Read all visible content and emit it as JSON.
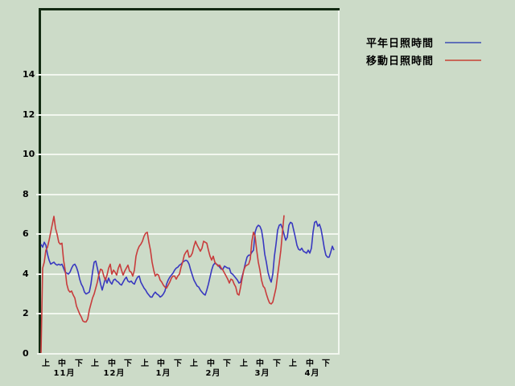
{
  "page": {
    "background_color": "#ccdbc8",
    "plot_border_dark": "#122a12",
    "plot_border_light": "#f2f7ef",
    "gridline_color": "#f2f7ef",
    "text_color": "#000000"
  },
  "legend": {
    "items": [
      {
        "label": "平年日照時間",
        "swatch_color": "#6070b8",
        "series": "normal"
      },
      {
        "label": "移動日照時間",
        "swatch_color": "#c86858",
        "series": "moving"
      }
    ]
  },
  "chart_data": {
    "type": "line",
    "title": "",
    "xlabel": "",
    "ylabel": "",
    "grid": true,
    "ylim": [
      0,
      17.3
    ],
    "y_ticks": [
      0,
      2,
      4,
      6,
      8,
      10,
      12,
      14
    ],
    "x_axis": {
      "period_labels": [
        "上",
        "中",
        "下"
      ],
      "months": [
        "１１月",
        "１２月",
        "１月",
        "２月",
        "３月",
        "４月"
      ],
      "months_plain": [
        "11月",
        "12月",
        "1月",
        "2月",
        "3月",
        "4月"
      ],
      "days_total": 183
    },
    "series": [
      {
        "name": "平年日照時間",
        "color": "#3838c0",
        "start_day": 1,
        "values": [
          5.5,
          5.35,
          5.6,
          5.45,
          5.0,
          4.7,
          4.5,
          4.55,
          4.6,
          4.5,
          4.45,
          4.5,
          4.45,
          4.5,
          4.3,
          4.1,
          4.05,
          4.0,
          4.1,
          4.3,
          4.45,
          4.5,
          4.35,
          4.1,
          3.75,
          3.5,
          3.35,
          3.1,
          3.0,
          3.05,
          3.1,
          3.5,
          4.1,
          4.6,
          4.65,
          4.3,
          3.9,
          3.5,
          3.2,
          3.5,
          3.8,
          3.55,
          3.8,
          3.6,
          3.5,
          3.7,
          3.75,
          3.65,
          3.6,
          3.5,
          3.45,
          3.6,
          3.75,
          3.85,
          3.65,
          3.6,
          3.65,
          3.55,
          3.5,
          3.7,
          3.85,
          3.9,
          3.6,
          3.45,
          3.3,
          3.2,
          3.05,
          2.95,
          2.85,
          2.85,
          3.0,
          3.1,
          3.0,
          2.95,
          2.85,
          2.9,
          3.0,
          3.15,
          3.5,
          3.7,
          3.85,
          3.95,
          4.05,
          4.2,
          4.3,
          4.35,
          4.45,
          4.5,
          4.6,
          4.65,
          4.7,
          4.65,
          4.5,
          4.2,
          3.95,
          3.7,
          3.55,
          3.4,
          3.35,
          3.2,
          3.1,
          3.0,
          2.95,
          3.2,
          3.5,
          3.85,
          4.2,
          4.45,
          4.55,
          4.5,
          4.45,
          4.35,
          4.25,
          4.25,
          4.4,
          4.35,
          4.3,
          4.3,
          4.05,
          4.0,
          3.9,
          3.8,
          3.7,
          3.55,
          3.6,
          3.9,
          4.2,
          4.55,
          4.85,
          4.95,
          4.95,
          5.1,
          5.2,
          6.1,
          6.35,
          6.45,
          6.4,
          6.2,
          5.7,
          5.0,
          4.6,
          4.1,
          3.8,
          3.6,
          4.0,
          4.9,
          5.5,
          6.2,
          6.45,
          6.5,
          6.3,
          6.0,
          5.7,
          5.85,
          6.45,
          6.6,
          6.55,
          6.2,
          5.85,
          5.45,
          5.25,
          5.2,
          5.3,
          5.15,
          5.1,
          5.05,
          5.2,
          5.05,
          5.3,
          6.1,
          6.6,
          6.65,
          6.4,
          6.5,
          6.25,
          5.8,
          5.3,
          4.95,
          4.85,
          4.85,
          5.1,
          5.4,
          5.2
        ]
      },
      {
        "name": "移動日照時間",
        "color": "#c83c3c",
        "start_day": 1,
        "values": [
          0.05,
          4.3,
          4.6,
          5.2,
          5.35,
          5.7,
          6.1,
          6.5,
          6.9,
          6.3,
          6.0,
          5.6,
          5.5,
          5.55,
          4.7,
          4.2,
          3.5,
          3.2,
          3.1,
          3.15,
          2.95,
          2.8,
          2.4,
          2.2,
          2.0,
          1.85,
          1.65,
          1.6,
          1.6,
          1.75,
          2.2,
          2.5,
          2.8,
          3.0,
          3.3,
          3.6,
          4.0,
          4.25,
          4.2,
          3.9,
          3.7,
          3.95,
          4.3,
          4.5,
          4.0,
          4.2,
          4.1,
          3.95,
          4.3,
          4.5,
          4.2,
          3.95,
          4.15,
          4.3,
          4.45,
          4.15,
          4.1,
          3.9,
          4.2,
          4.9,
          5.2,
          5.4,
          5.5,
          5.65,
          5.9,
          6.05,
          6.1,
          5.6,
          5.2,
          4.6,
          4.2,
          3.9,
          4.0,
          3.95,
          3.7,
          3.6,
          3.45,
          3.35,
          3.3,
          3.45,
          3.6,
          3.8,
          3.9,
          3.9,
          3.75,
          3.9,
          4.0,
          4.35,
          4.6,
          4.95,
          5.1,
          5.2,
          4.85,
          4.9,
          5.05,
          5.4,
          5.65,
          5.45,
          5.3,
          5.15,
          5.3,
          5.65,
          5.6,
          5.55,
          5.2,
          4.9,
          4.7,
          4.9,
          4.6,
          4.5,
          4.4,
          4.45,
          4.3,
          4.2,
          4.05,
          3.9,
          3.75,
          3.55,
          3.75,
          3.7,
          3.5,
          3.35,
          3.0,
          2.95,
          3.35,
          3.8,
          4.2,
          4.4,
          4.45,
          4.5,
          4.75,
          5.65,
          6.1,
          5.9,
          5.2,
          4.6,
          4.2,
          3.7,
          3.4,
          3.3,
          3.0,
          2.75,
          2.55,
          2.5,
          2.6,
          2.95,
          3.3,
          3.95,
          4.55,
          5.2,
          6.1,
          6.95
        ]
      }
    ]
  }
}
